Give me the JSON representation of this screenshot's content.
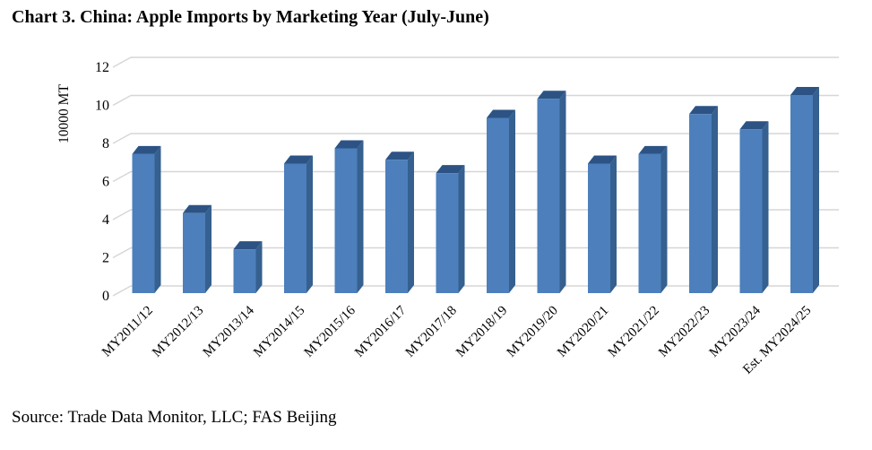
{
  "title": "Chart 3. China: Apple Imports by Marketing Year (July-June)",
  "source": "Source: Trade Data Monitor, LLC; FAS Beijing",
  "chart_data": {
    "type": "bar",
    "style": "3d-column",
    "title": "Chart 3. China: Apple Imports by Marketing Year (July-June)",
    "xlabel": "",
    "ylabel": "10000 MT",
    "ylim": [
      0,
      12
    ],
    "yticks": [
      0,
      2,
      4,
      6,
      8,
      10,
      12
    ],
    "grid": true,
    "legend": false,
    "categories": [
      "MY2011/12",
      "MY2012/13",
      "MY2013/14",
      "MY2014/15",
      "MY2015/16",
      "MY2016/17",
      "MY2017/18",
      "MY2018/19",
      "MY2019/20",
      "MY2020/21",
      "MY2021/22",
      "MY2022/23",
      "MY2023/24",
      "Est. MY2024/25"
    ],
    "values": [
      7.3,
      4.2,
      2.3,
      6.8,
      7.6,
      7.0,
      6.3,
      9.2,
      10.2,
      6.8,
      7.3,
      9.4,
      8.6,
      10.4
    ],
    "colors": {
      "bar_front": "#4C7FBC",
      "bar_side": "#35608F",
      "bar_top": "#2C5384",
      "gridline": "#D6D6D6",
      "text": "#000000",
      "background": "#FFFFFF"
    }
  }
}
